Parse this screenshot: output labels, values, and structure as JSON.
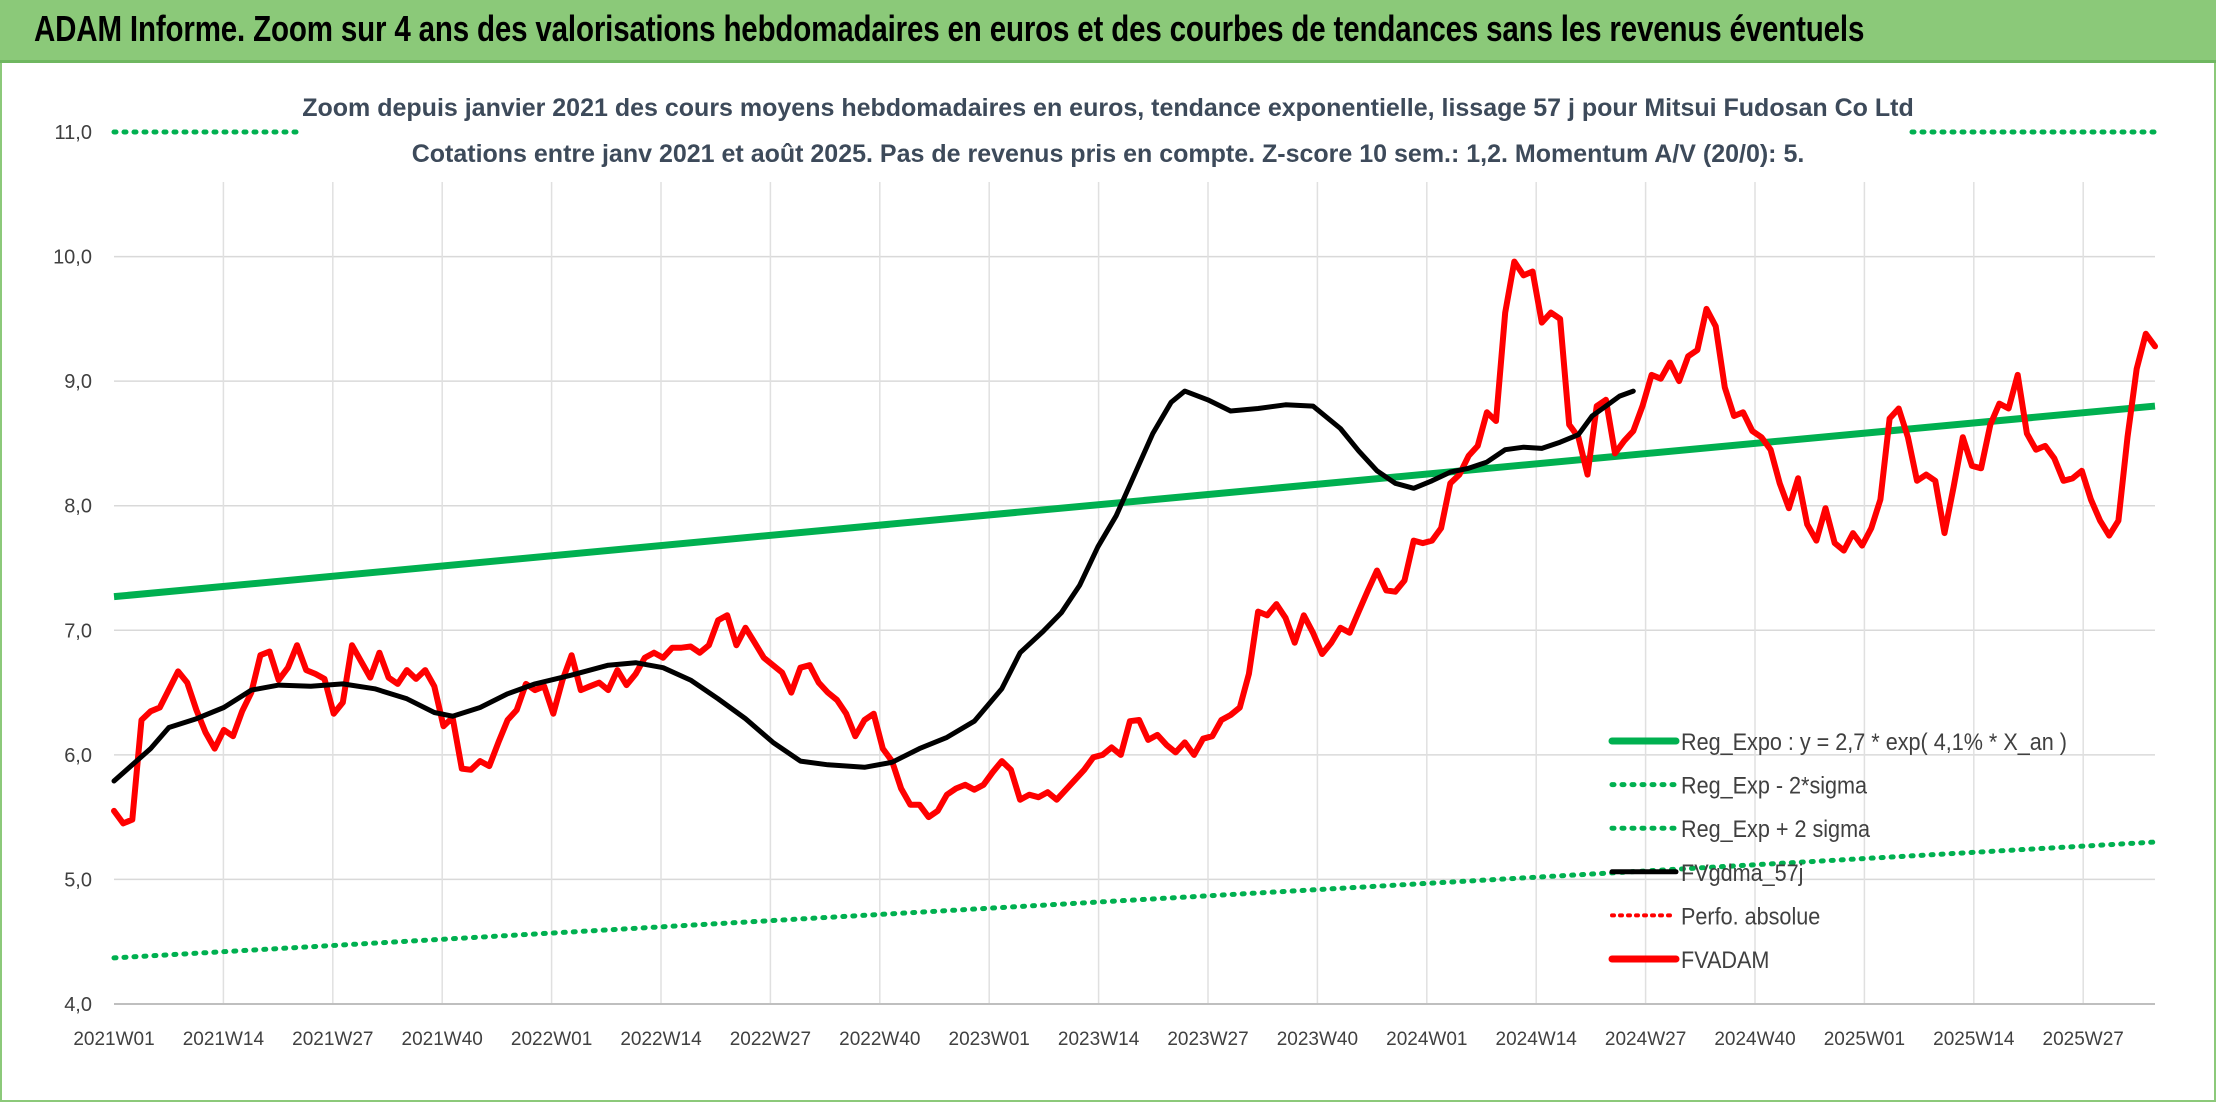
{
  "banner": {
    "title": "ADAM Informe. Zoom sur 4 ans des valorisations hebdomadaires en euros et des courbes de tendances sans les revenus éventuels"
  },
  "colors": {
    "banner": "#8bc979",
    "reg_expo": "#00b050",
    "sigma_lines": "#00b050",
    "perfo_absolue": "#ff0000",
    "fvadam": "#ff0000",
    "fvgdma": "#000000"
  },
  "chart_data": {
    "type": "line",
    "title": "Zoom depuis janvier 2021 des cours moyens hebdomadaires en euros, tendance exponentielle, lissage 57 j pour Mitsui Fudosan Co Ltd",
    "subtitle": "Cotations entre janv 2021 et août 2025. Pas de revenus pris en compte. Z-score 10 sem.: 1,2. Momentum A/V (20/0): 5.",
    "xlabel": "",
    "ylabel": "",
    "ylim": [
      4.0,
      11.0
    ],
    "y_ticks": [
      "4,0",
      "5,0",
      "6,0",
      "7,0",
      "8,0",
      "9,0",
      "10,0",
      "11,0"
    ],
    "x_ticks": [
      "2021W01",
      "2021W14",
      "2021W27",
      "2021W40",
      "2022W01",
      "2022W14",
      "2022W27",
      "2022W40",
      "2023W01",
      "2023W14",
      "2023W27",
      "2023W40",
      "2024W01",
      "2024W14",
      "2024W27",
      "2024W40",
      "2025W01",
      "2025W14",
      "2025W27"
    ],
    "weeks_count": 244,
    "grid": true,
    "legend_position": "bottom-right",
    "series": [
      {
        "name": "Reg_Expo : y = 2,7 * exp( 4,1% *  X_an )",
        "style": "solid-green",
        "start_value": 7.27,
        "end_value": 8.8
      },
      {
        "name": "Reg_Exp - 2*sigma",
        "style": "dotted-green",
        "start_value": 4.37,
        "end_value": 5.3
      },
      {
        "name": "Reg_Exp + 2 sigma",
        "style": "dotted-green",
        "start_value": 11.0,
        "end_value": 11.0
      },
      {
        "name": "FVgdma_57j",
        "style": "solid-black",
        "points": [
          [
            0,
            5.79
          ],
          [
            8,
            6.05
          ],
          [
            12,
            6.22
          ],
          [
            18,
            6.29
          ],
          [
            24,
            6.38
          ],
          [
            30,
            6.52
          ],
          [
            36,
            6.56
          ],
          [
            43,
            6.55
          ],
          [
            50,
            6.57
          ],
          [
            57,
            6.53
          ],
          [
            64,
            6.45
          ],
          [
            70,
            6.34
          ],
          [
            74,
            6.31
          ],
          [
            80,
            6.38
          ],
          [
            86,
            6.49
          ],
          [
            92,
            6.57
          ],
          [
            100,
            6.64
          ],
          [
            108,
            6.72
          ],
          [
            114,
            6.74
          ],
          [
            120,
            6.7
          ],
          [
            126,
            6.6
          ],
          [
            132,
            6.45
          ],
          [
            138,
            6.29
          ],
          [
            144,
            6.1
          ],
          [
            150,
            5.95
          ],
          [
            156,
            5.92
          ],
          [
            164,
            5.9
          ],
          [
            170,
            5.94
          ],
          [
            176,
            6.05
          ],
          [
            182,
            6.14
          ],
          [
            188,
            6.27
          ],
          [
            194,
            6.53
          ],
          [
            198,
            6.82
          ],
          [
            203,
            6.99
          ],
          [
            207,
            7.14
          ],
          [
            211,
            7.36
          ],
          [
            215,
            7.67
          ],
          [
            219,
            7.92
          ],
          [
            223,
            8.25
          ],
          [
            227,
            8.58
          ],
          [
            231,
            8.83
          ],
          [
            234,
            8.92
          ],
          [
            239,
            8.85
          ],
          [
            244,
            8.76
          ],
          [
            250,
            8.78
          ],
          [
            256,
            8.81
          ],
          [
            262,
            8.8
          ],
          [
            268,
            8.62
          ],
          [
            272,
            8.44
          ],
          [
            276,
            8.28
          ],
          [
            280,
            8.18
          ],
          [
            284,
            8.14
          ],
          [
            288,
            8.2
          ],
          [
            292,
            8.27
          ],
          [
            296,
            8.3
          ],
          [
            300,
            8.35
          ],
          [
            304,
            8.45
          ],
          [
            308,
            8.47
          ],
          [
            312,
            8.46
          ],
          [
            316,
            8.51
          ],
          [
            320,
            8.57
          ],
          [
            323,
            8.72
          ],
          [
            326,
            8.8
          ],
          [
            329,
            8.88
          ],
          [
            332,
            8.92
          ]
        ]
      },
      {
        "name": "Perfo. absolue",
        "style": "dotted-red"
      },
      {
        "name": "FVADAM",
        "style": "solid-red",
        "points": [
          [
            0,
            5.55
          ],
          [
            2,
            5.45
          ],
          [
            4,
            5.48
          ],
          [
            6,
            6.28
          ],
          [
            8,
            6.35
          ],
          [
            10,
            6.38
          ],
          [
            14,
            6.67
          ],
          [
            16,
            6.58
          ],
          [
            18,
            6.36
          ],
          [
            20,
            6.18
          ],
          [
            22,
            6.05
          ],
          [
            24,
            6.2
          ],
          [
            26,
            6.15
          ],
          [
            28,
            6.35
          ],
          [
            30,
            6.5
          ],
          [
            32,
            6.8
          ],
          [
            34,
            6.83
          ],
          [
            36,
            6.6
          ],
          [
            38,
            6.7
          ],
          [
            40,
            6.88
          ],
          [
            42,
            6.68
          ],
          [
            44,
            6.65
          ],
          [
            46,
            6.61
          ],
          [
            48,
            6.33
          ],
          [
            50,
            6.42
          ],
          [
            52,
            6.88
          ],
          [
            54,
            6.75
          ],
          [
            56,
            6.62
          ],
          [
            58,
            6.82
          ],
          [
            60,
            6.62
          ],
          [
            62,
            6.57
          ],
          [
            64,
            6.68
          ],
          [
            66,
            6.61
          ],
          [
            68,
            6.68
          ],
          [
            70,
            6.55
          ],
          [
            72,
            6.23
          ],
          [
            74,
            6.3
          ],
          [
            76,
            5.89
          ],
          [
            78,
            5.88
          ],
          [
            80,
            5.95
          ],
          [
            82,
            5.91
          ],
          [
            84,
            6.1
          ],
          [
            86,
            6.28
          ],
          [
            88,
            6.36
          ],
          [
            90,
            6.57
          ],
          [
            92,
            6.52
          ],
          [
            94,
            6.55
          ],
          [
            96,
            6.33
          ],
          [
            98,
            6.6
          ],
          [
            100,
            6.8
          ],
          [
            102,
            6.52
          ],
          [
            104,
            6.55
          ],
          [
            106,
            6.58
          ],
          [
            108,
            6.52
          ],
          [
            110,
            6.68
          ],
          [
            112,
            6.56
          ],
          [
            114,
            6.65
          ],
          [
            116,
            6.78
          ],
          [
            118,
            6.82
          ],
          [
            120,
            6.78
          ],
          [
            122,
            6.86
          ],
          [
            124,
            6.86
          ],
          [
            126,
            6.87
          ],
          [
            128,
            6.82
          ],
          [
            130,
            6.88
          ],
          [
            132,
            7.08
          ],
          [
            134,
            7.12
          ],
          [
            136,
            6.88
          ],
          [
            138,
            7.02
          ],
          [
            140,
            6.9
          ],
          [
            142,
            6.78
          ],
          [
            144,
            6.72
          ],
          [
            146,
            6.66
          ],
          [
            148,
            6.5
          ],
          [
            150,
            6.7
          ],
          [
            152,
            6.72
          ],
          [
            154,
            6.58
          ],
          [
            156,
            6.5
          ],
          [
            158,
            6.44
          ],
          [
            160,
            6.33
          ],
          [
            162,
            6.15
          ],
          [
            164,
            6.28
          ],
          [
            166,
            6.33
          ],
          [
            168,
            6.05
          ],
          [
            170,
            5.95
          ],
          [
            172,
            5.73
          ],
          [
            174,
            5.6
          ],
          [
            176,
            5.6
          ],
          [
            178,
            5.5
          ],
          [
            180,
            5.55
          ],
          [
            182,
            5.68
          ],
          [
            184,
            5.73
          ],
          [
            186,
            5.76
          ],
          [
            188,
            5.72
          ],
          [
            190,
            5.76
          ],
          [
            192,
            5.86
          ],
          [
            194,
            5.95
          ],
          [
            196,
            5.88
          ],
          [
            198,
            5.64
          ],
          [
            200,
            5.68
          ],
          [
            202,
            5.66
          ],
          [
            204,
            5.7
          ],
          [
            206,
            5.64
          ],
          [
            208,
            5.72
          ],
          [
            210,
            5.8
          ],
          [
            212,
            5.88
          ],
          [
            214,
            5.98
          ],
          [
            216,
            6.0
          ],
          [
            218,
            6.06
          ],
          [
            220,
            6.0
          ],
          [
            222,
            6.27
          ],
          [
            224,
            6.28
          ],
          [
            226,
            6.12
          ],
          [
            228,
            6.16
          ],
          [
            230,
            6.08
          ],
          [
            232,
            6.02
          ],
          [
            234,
            6.1
          ],
          [
            236,
            6.0
          ],
          [
            238,
            6.13
          ],
          [
            240,
            6.15
          ],
          [
            242,
            6.28
          ],
          [
            244,
            6.32
          ],
          [
            246,
            6.38
          ],
          [
            248,
            6.65
          ],
          [
            250,
            7.15
          ],
          [
            252,
            7.12
          ],
          [
            254,
            7.21
          ],
          [
            256,
            7.1
          ],
          [
            258,
            6.9
          ],
          [
            260,
            7.12
          ],
          [
            262,
            6.98
          ],
          [
            264,
            6.81
          ],
          [
            266,
            6.9
          ],
          [
            268,
            7.02
          ],
          [
            270,
            6.98
          ],
          [
            272,
            7.15
          ],
          [
            274,
            7.32
          ],
          [
            276,
            7.48
          ],
          [
            278,
            7.32
          ],
          [
            280,
            7.31
          ],
          [
            282,
            7.4
          ],
          [
            284,
            7.72
          ],
          [
            286,
            7.7
          ],
          [
            288,
            7.72
          ],
          [
            290,
            7.82
          ],
          [
            292,
            8.18
          ],
          [
            294,
            8.25
          ],
          [
            296,
            8.4
          ],
          [
            298,
            8.48
          ],
          [
            300,
            8.75
          ],
          [
            302,
            8.68
          ],
          [
            304,
            9.55
          ],
          [
            306,
            9.96
          ],
          [
            308,
            9.85
          ],
          [
            310,
            9.88
          ],
          [
            312,
            9.47
          ],
          [
            314,
            9.55
          ],
          [
            316,
            9.5
          ],
          [
            318,
            8.65
          ],
          [
            320,
            8.55
          ],
          [
            322,
            8.25
          ],
          [
            324,
            8.8
          ],
          [
            326,
            8.85
          ],
          [
            328,
            8.42
          ],
          [
            330,
            8.52
          ],
          [
            332,
            8.6
          ],
          [
            334,
            8.8
          ],
          [
            336,
            9.05
          ],
          [
            338,
            9.02
          ],
          [
            340,
            9.15
          ],
          [
            342,
            9.0
          ],
          [
            344,
            9.2
          ],
          [
            346,
            9.25
          ],
          [
            348,
            9.58
          ],
          [
            350,
            9.44
          ],
          [
            352,
            8.95
          ],
          [
            354,
            8.72
          ],
          [
            356,
            8.75
          ],
          [
            358,
            8.6
          ],
          [
            360,
            8.55
          ],
          [
            362,
            8.45
          ],
          [
            364,
            8.18
          ],
          [
            366,
            7.98
          ],
          [
            368,
            8.22
          ],
          [
            370,
            7.85
          ],
          [
            372,
            7.72
          ],
          [
            374,
            7.98
          ],
          [
            376,
            7.7
          ],
          [
            378,
            7.64
          ],
          [
            380,
            7.78
          ],
          [
            382,
            7.68
          ],
          [
            384,
            7.82
          ],
          [
            386,
            8.05
          ],
          [
            388,
            8.7
          ],
          [
            390,
            8.78
          ],
          [
            392,
            8.55
          ],
          [
            394,
            8.2
          ],
          [
            396,
            8.25
          ],
          [
            398,
            8.2
          ],
          [
            400,
            7.78
          ],
          [
            402,
            8.15
          ],
          [
            404,
            8.55
          ],
          [
            406,
            8.32
          ],
          [
            408,
            8.3
          ],
          [
            410,
            8.65
          ],
          [
            412,
            8.82
          ],
          [
            414,
            8.78
          ],
          [
            416,
            9.05
          ],
          [
            418,
            8.58
          ],
          [
            420,
            8.45
          ],
          [
            422,
            8.48
          ],
          [
            424,
            8.38
          ],
          [
            426,
            8.2
          ],
          [
            428,
            8.22
          ],
          [
            430,
            8.28
          ],
          [
            432,
            8.05
          ],
          [
            434,
            7.88
          ],
          [
            436,
            7.76
          ],
          [
            438,
            7.88
          ],
          [
            440,
            8.55
          ],
          [
            442,
            9.1
          ],
          [
            444,
            9.38
          ],
          [
            446,
            9.28
          ]
        ]
      }
    ]
  }
}
